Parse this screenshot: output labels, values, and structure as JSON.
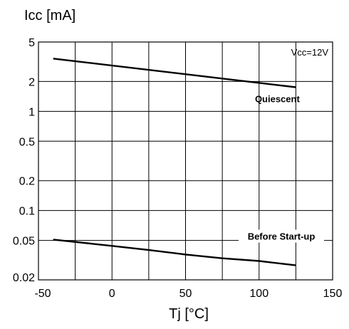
{
  "chart_data": {
    "type": "line",
    "title": "",
    "ylabel": "Icc [mA]",
    "xlabel": "Tj [°C]",
    "x_scale": "linear",
    "y_scale": "log",
    "xlim": [
      -50,
      150
    ],
    "ylim": [
      0.02,
      5
    ],
    "x_ticks": [
      -50,
      0,
      50,
      100,
      150
    ],
    "y_ticks": [
      {
        "value": 5,
        "label": "5"
      },
      {
        "value": 2,
        "label": "2"
      },
      {
        "value": 1,
        "label": "1"
      },
      {
        "value": 0.5,
        "label": "0.5"
      },
      {
        "value": 0.2,
        "label": "0.2"
      },
      {
        "value": 0.1,
        "label": "0.1"
      },
      {
        "value": 0.05,
        "label": "0.05"
      },
      {
        "value": 0.02,
        "label": "0.02"
      }
    ],
    "x_gridlines": [
      -25,
      0,
      25,
      50,
      75,
      100,
      125
    ],
    "grid": true,
    "annotation": "Vcc=12V",
    "series": [
      {
        "name": "Quiescent",
        "x": [
          -40,
          125
        ],
        "y": [
          3.4,
          1.75
        ],
        "color": "#000000"
      },
      {
        "name": "Before Start-up",
        "x": [
          -40,
          0,
          25,
          50,
          75,
          100,
          125
        ],
        "y": [
          0.051,
          0.044,
          0.04,
          0.036,
          0.033,
          0.031,
          0.028
        ],
        "color": "#000000"
      }
    ]
  }
}
